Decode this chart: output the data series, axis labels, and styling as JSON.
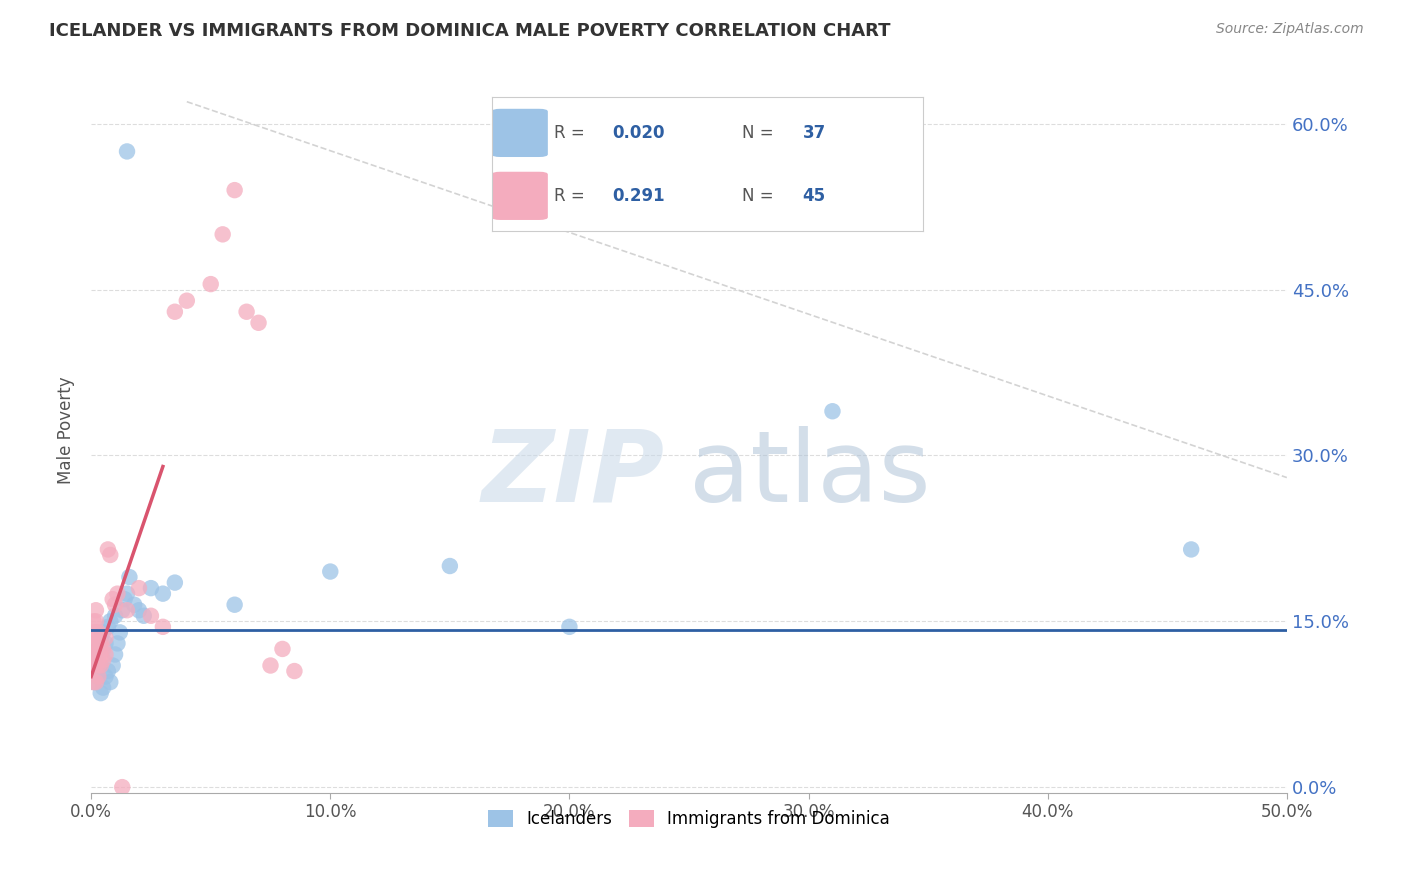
{
  "title": "ICELANDER VS IMMIGRANTS FROM DOMINICA MALE POVERTY CORRELATION CHART",
  "source": "Source: ZipAtlas.com",
  "ylabel": "Male Poverty",
  "xlim": [
    0.0,
    0.5
  ],
  "ylim": [
    -0.005,
    0.65
  ],
  "xticks": [
    0.0,
    0.1,
    0.2,
    0.3,
    0.4,
    0.5
  ],
  "xtick_labels": [
    "0.0%",
    "10.0%",
    "20.0%",
    "30.0%",
    "40.0%",
    "50.0%"
  ],
  "yticks": [
    0.0,
    0.15,
    0.3,
    0.45,
    0.6
  ],
  "ytick_labels_right": [
    "0.0%",
    "15.0%",
    "30.0%",
    "45.0%",
    "60.0%"
  ],
  "color_blue": "#9dc3e6",
  "color_pink": "#f4acbe",
  "trendline_blue_color": "#2e5fa3",
  "trendline_pink_color": "#d9546e",
  "diag_color": "#cccccc",
  "watermark_zip_color": "#ccd9ea",
  "watermark_atlas_color": "#b8cfe0",
  "blue_R": 0.02,
  "blue_N": 37,
  "pink_R": 0.291,
  "pink_N": 45,
  "blue_scatter_x": [
    0.001,
    0.002,
    0.002,
    0.003,
    0.003,
    0.004,
    0.004,
    0.005,
    0.005,
    0.006,
    0.006,
    0.007,
    0.007,
    0.008,
    0.008,
    0.009,
    0.01,
    0.01,
    0.011,
    0.012,
    0.013,
    0.014,
    0.015,
    0.016,
    0.018,
    0.02,
    0.022,
    0.025,
    0.03,
    0.035,
    0.06,
    0.1,
    0.15,
    0.2,
    0.31,
    0.46,
    0.015
  ],
  "blue_scatter_y": [
    0.095,
    0.11,
    0.12,
    0.1,
    0.125,
    0.085,
    0.135,
    0.09,
    0.14,
    0.1,
    0.13,
    0.105,
    0.145,
    0.095,
    0.15,
    0.11,
    0.12,
    0.155,
    0.13,
    0.14,
    0.16,
    0.17,
    0.175,
    0.19,
    0.165,
    0.16,
    0.155,
    0.18,
    0.175,
    0.185,
    0.165,
    0.195,
    0.2,
    0.145,
    0.34,
    0.215,
    0.575
  ],
  "pink_scatter_x": [
    0.001,
    0.001,
    0.001,
    0.001,
    0.001,
    0.001,
    0.002,
    0.002,
    0.002,
    0.002,
    0.002,
    0.002,
    0.002,
    0.003,
    0.003,
    0.003,
    0.003,
    0.003,
    0.004,
    0.004,
    0.004,
    0.005,
    0.005,
    0.006,
    0.006,
    0.007,
    0.008,
    0.009,
    0.01,
    0.011,
    0.013,
    0.015,
    0.02,
    0.025,
    0.03,
    0.035,
    0.04,
    0.05,
    0.055,
    0.06,
    0.065,
    0.07,
    0.075,
    0.08,
    0.085
  ],
  "pink_scatter_y": [
    0.095,
    0.11,
    0.12,
    0.13,
    0.14,
    0.15,
    0.095,
    0.11,
    0.12,
    0.13,
    0.14,
    0.15,
    0.16,
    0.1,
    0.11,
    0.12,
    0.13,
    0.14,
    0.11,
    0.12,
    0.13,
    0.115,
    0.125,
    0.12,
    0.135,
    0.215,
    0.21,
    0.17,
    0.165,
    0.175,
    0.0,
    0.16,
    0.18,
    0.155,
    0.145,
    0.43,
    0.44,
    0.455,
    0.5,
    0.54,
    0.43,
    0.42,
    0.11,
    0.125,
    0.105
  ]
}
